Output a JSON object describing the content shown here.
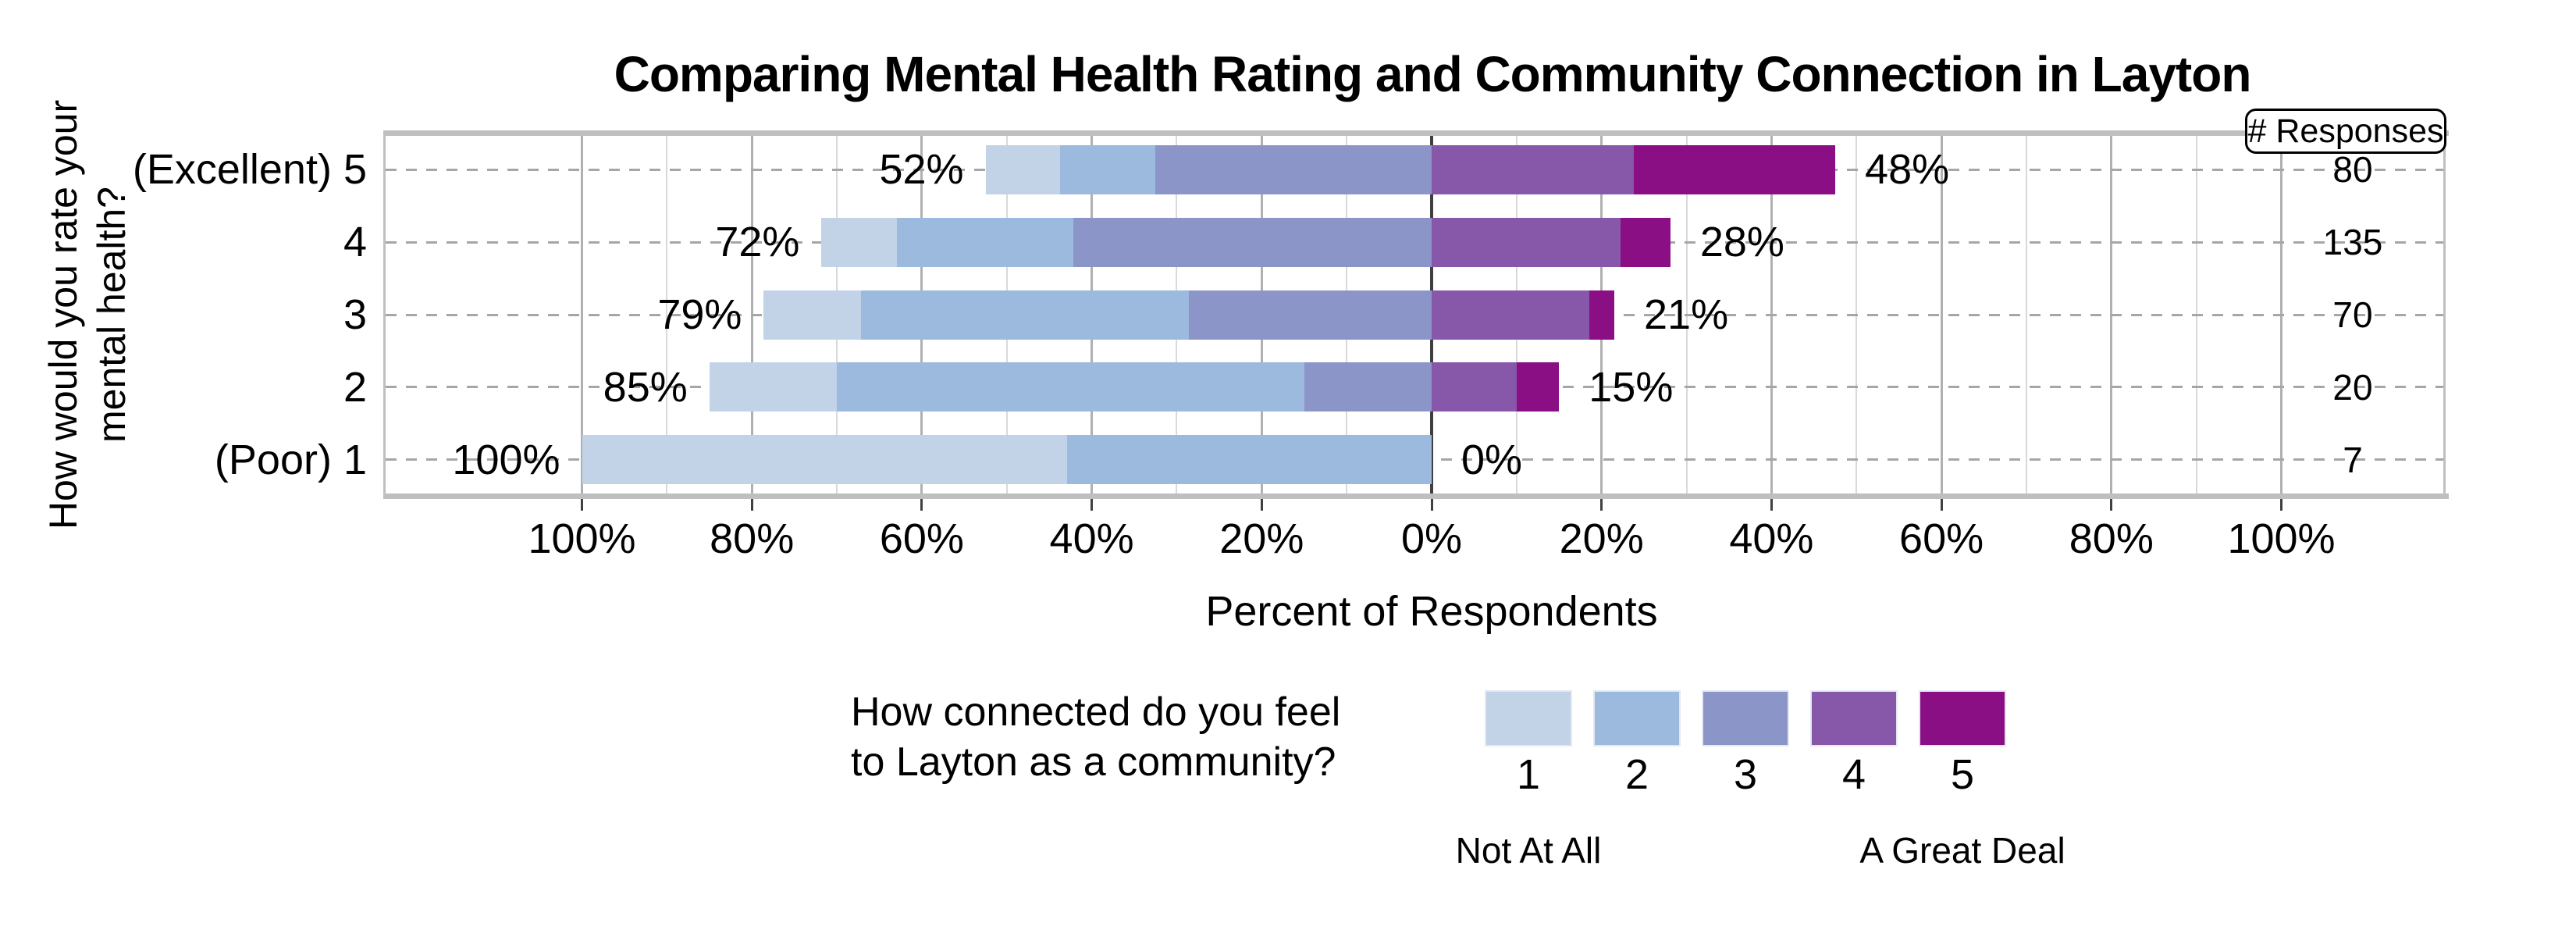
{
  "title": "Comparing Mental Health Rating and Community Connection in Layton",
  "axes": {
    "y_title_line1": "How would you rate your",
    "y_title_line2": "mental health?",
    "x_title": "Percent of Respondents",
    "x_tick_labels": [
      "100%",
      "80%",
      "60%",
      "40%",
      "20%",
      "0%",
      "20%",
      "40%",
      "60%",
      "80%",
      "100%"
    ]
  },
  "responses_header": "# Responses",
  "legend": {
    "title_line1": "How connected do you feel",
    "title_line2": "to Layton as a community?",
    "item_labels": [
      "1",
      "2",
      "3",
      "4",
      "5"
    ],
    "anchor_low": "Not At All",
    "anchor_high": "A Great Deal",
    "colors": [
      "#c2d3e8",
      "#9cbadd",
      "#8c95c8",
      "#8757a9",
      "#8a0e84"
    ]
  },
  "colors": {
    "zero_line": "#3f3f3f",
    "major_grid": "#b0b0b0",
    "minor_grid": "#d9d9d9",
    "row_dash": "#a6a6a6",
    "plot_border": "#bfbfbf",
    "text": "#000000"
  },
  "chart_data": {
    "type": "bar",
    "variant": "diverging-stacked-likert",
    "title": "Comparing Mental Health Rating and Community Connection in Layton",
    "xlabel": "Percent of Respondents",
    "ylabel": "How would you rate your mental health?",
    "x_axis_range_percent": [
      -100,
      100
    ],
    "gridline_step_percent": 10,
    "tick_step_percent": 20,
    "categories": [
      "(Excellent) 5",
      "4",
      "3",
      "2",
      "(Poor) 1"
    ],
    "n_responses": [
      80,
      135,
      70,
      20,
      7
    ],
    "legend_series": [
      "1",
      "2",
      "3",
      "4",
      "5"
    ],
    "segment_percents_by_category": [
      [
        8.75,
        11.25,
        32.5,
        23.75,
        23.75
      ],
      [
        8.9,
        20.7,
        42.2,
        22.2,
        5.9
      ],
      [
        11.4,
        38.6,
        28.6,
        18.6,
        2.9
      ],
      [
        15.0,
        55.0,
        15.0,
        10.0,
        5.0
      ],
      [
        57.1,
        42.9,
        0,
        0,
        0
      ]
    ],
    "left_total_labels": [
      "52%",
      "72%",
      "79%",
      "85%",
      "100%"
    ],
    "right_total_labels": [
      "48%",
      "28%",
      "21%",
      "15%",
      "0%"
    ]
  }
}
